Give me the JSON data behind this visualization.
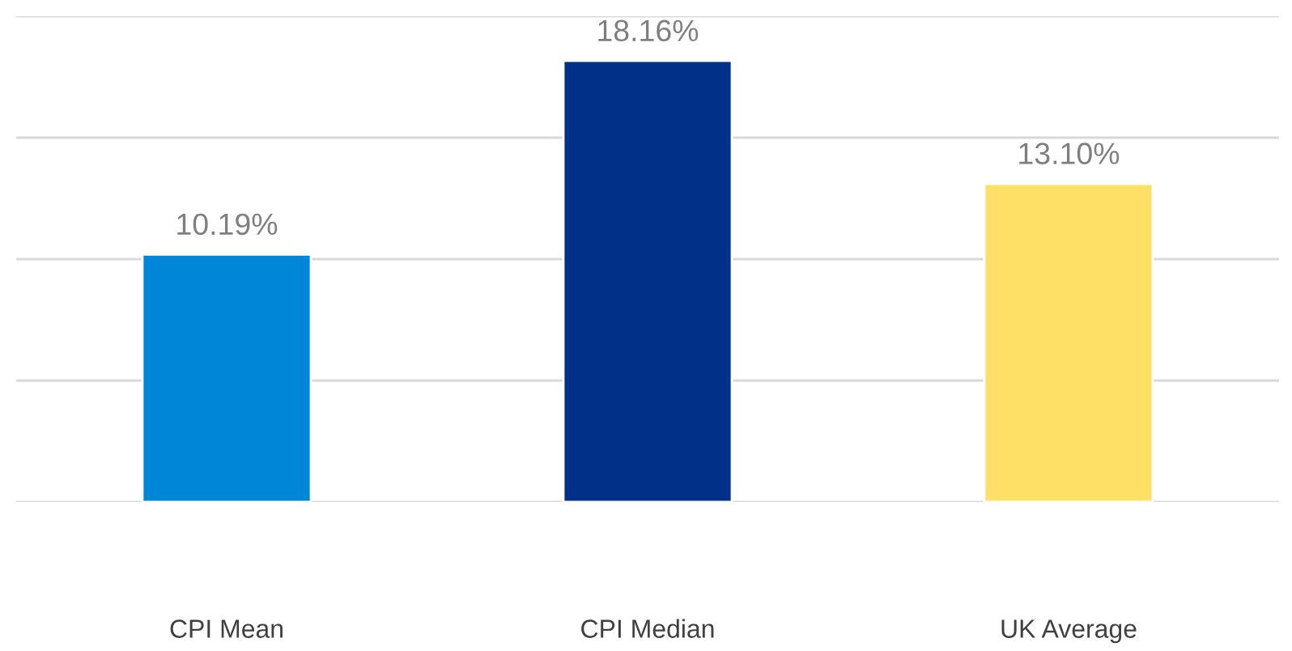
{
  "chart_data": {
    "type": "bar",
    "categories": [
      "CPI Mean",
      "CPI Median",
      "UK Average"
    ],
    "values": [
      10.19,
      18.16,
      13.1
    ],
    "colors": [
      "#0086d6",
      "#003087",
      "#ffe066"
    ],
    "value_labels": [
      "10.19%",
      "18.16%",
      "13.10%"
    ],
    "ylim": [
      0,
      20
    ],
    "yticks": [
      {
        "value": 0,
        "label": null
      },
      {
        "value": 5,
        "label": null
      },
      {
        "value": 10,
        "label": null
      },
      {
        "value": 15,
        "label": null
      },
      {
        "value": 20,
        "label": null
      }
    ],
    "grid": "y",
    "tick_labels": "x"
  }
}
